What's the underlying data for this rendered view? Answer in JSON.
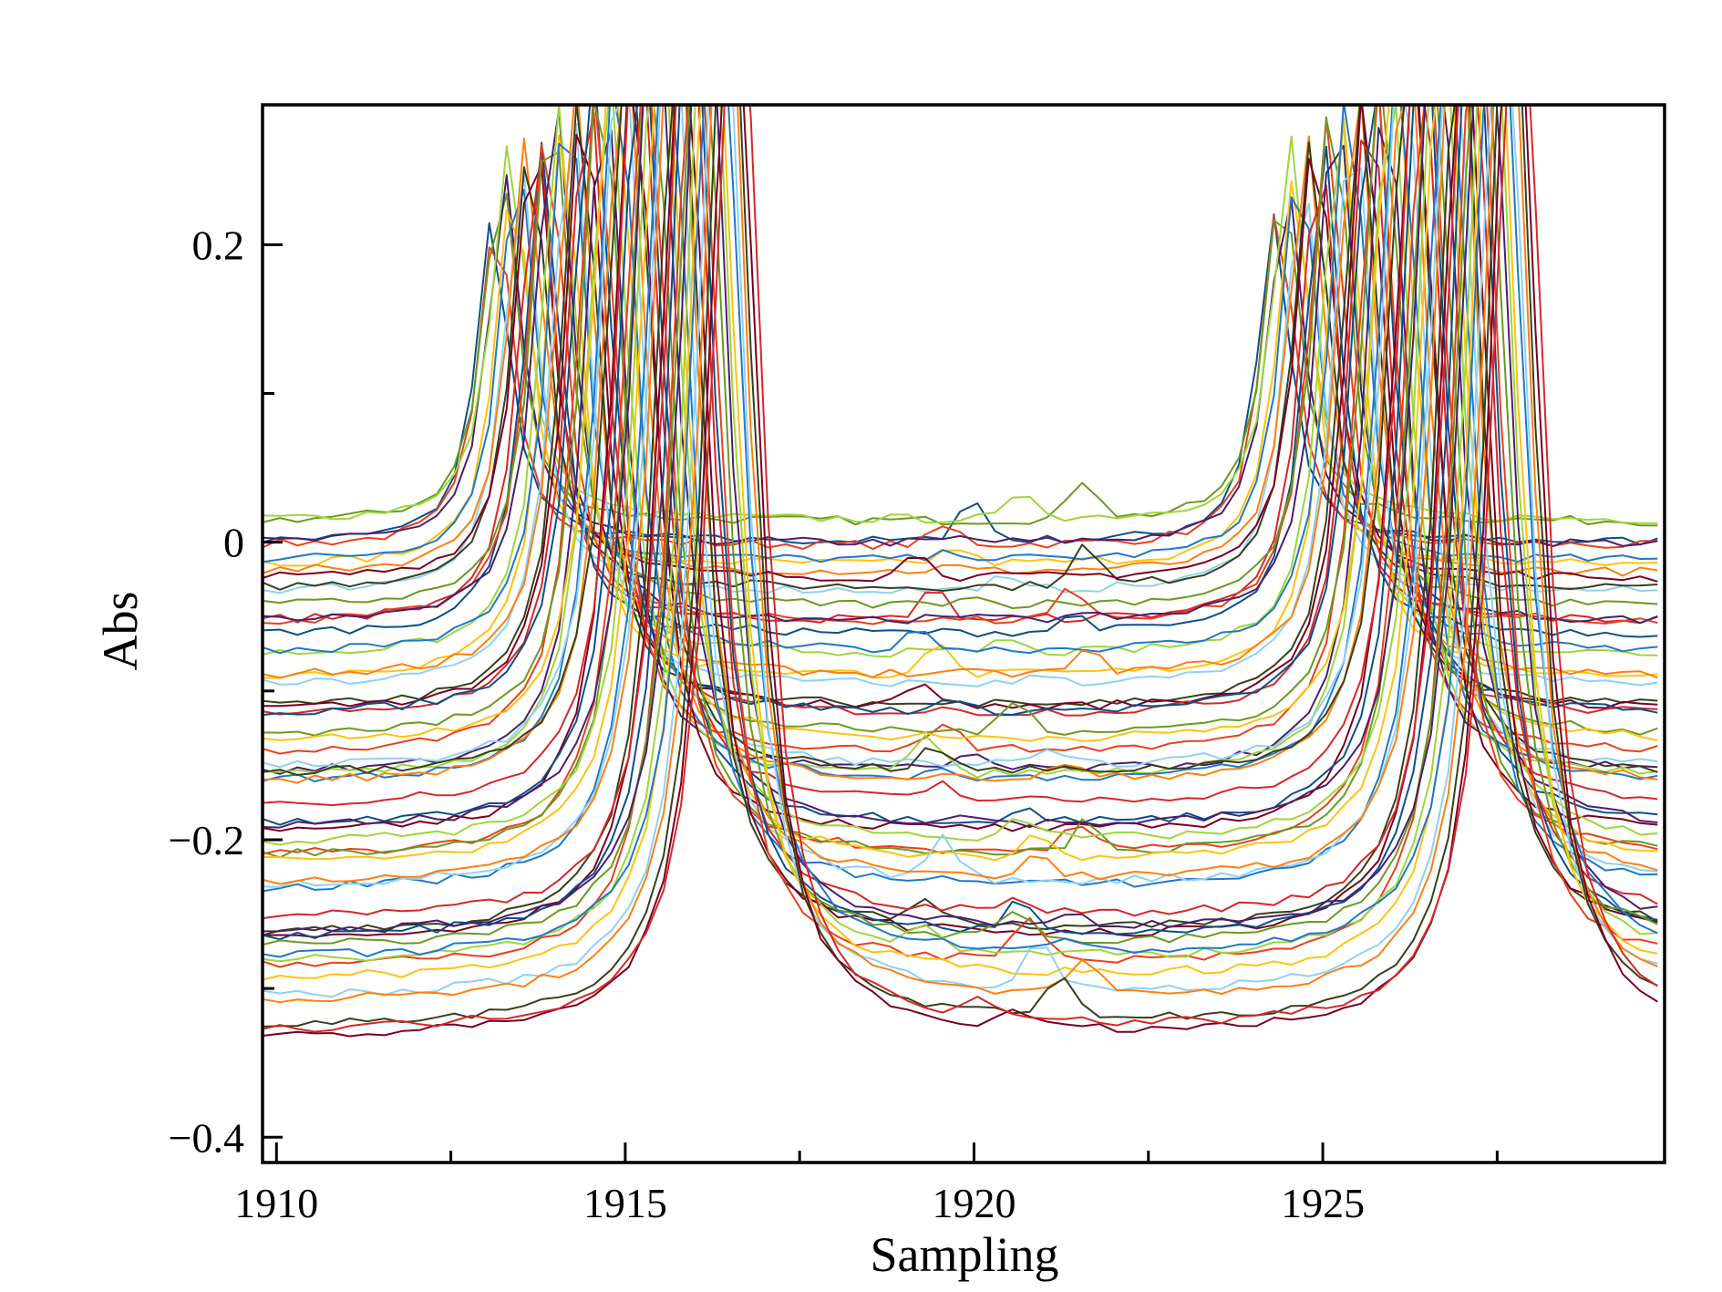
{
  "chart_data": {
    "type": "line",
    "title": "",
    "xlabel": "Sampling",
    "ylabel": "Abs",
    "xlim": [
      1909.8,
      1929.9
    ],
    "ylim": [
      -0.417,
      0.294
    ],
    "x_ticks_major": [
      1910,
      1915,
      1920,
      1925
    ],
    "x_ticks_minor": [
      1912.5,
      1917.5,
      1922.5,
      1927.5
    ],
    "y_ticks_major": [
      0.2,
      0,
      -0.2,
      -0.4
    ],
    "y_ticks_minor": [
      0.1,
      -0.1,
      -0.3
    ],
    "x_tick_labels": [
      "1910",
      "1915",
      "1920",
      "1925"
    ],
    "y_tick_labels": [
      "0.2",
      "0",
      "−0.2",
      "−0.4"
    ],
    "grid": false,
    "legend": "none",
    "palette": [
      "#0b4f8a",
      "#e8401c",
      "#6a9a1f",
      "#4b1f6f",
      "#9ed63a",
      "#ffc20e",
      "#1f78c8",
      "#8ed1f5",
      "#ff7f0e",
      "#37401a",
      "#7a0020",
      "#d62728"
    ],
    "series_count": 60,
    "samples_per_series": 81,
    "series_profile": {
      "peak1_center_range": [
        1913.1,
        1916.6
      ],
      "peak2_center_range": [
        1924.3,
        1927.8
      ],
      "baseline_range": [
        -0.33,
        0.02
      ],
      "note_free": true
    }
  }
}
